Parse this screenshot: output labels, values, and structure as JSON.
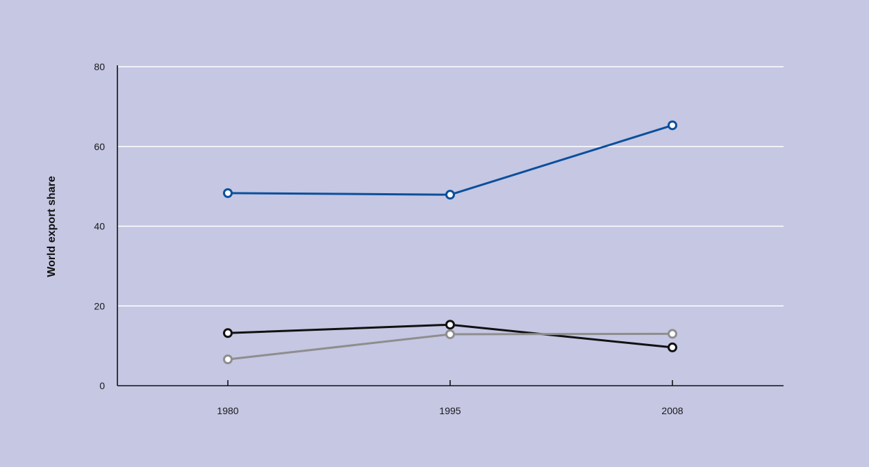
{
  "chart_data": {
    "type": "line",
    "title": "",
    "xlabel": "",
    "ylabel": "World export share",
    "categories": [
      "1980",
      "1995",
      "2008"
    ],
    "ylim": [
      0,
      80
    ],
    "yticks": [
      0,
      20,
      40,
      60,
      80
    ],
    "grid": true,
    "legend": "none",
    "series": [
      {
        "color": "#0b4f9c",
        "marker": "open-circle",
        "values": [
          48.3,
          47.9,
          65.3
        ]
      },
      {
        "color": "#111111",
        "marker": "open-circle",
        "values": [
          13.2,
          15.3,
          9.6
        ]
      },
      {
        "color": "#8e8e8e",
        "marker": "open-circle",
        "values": [
          6.6,
          12.9,
          13.0
        ]
      }
    ]
  },
  "colors": {
    "panel_background": "#c5c7e3",
    "gridline": "#ffffff",
    "axis": "#111111"
  }
}
